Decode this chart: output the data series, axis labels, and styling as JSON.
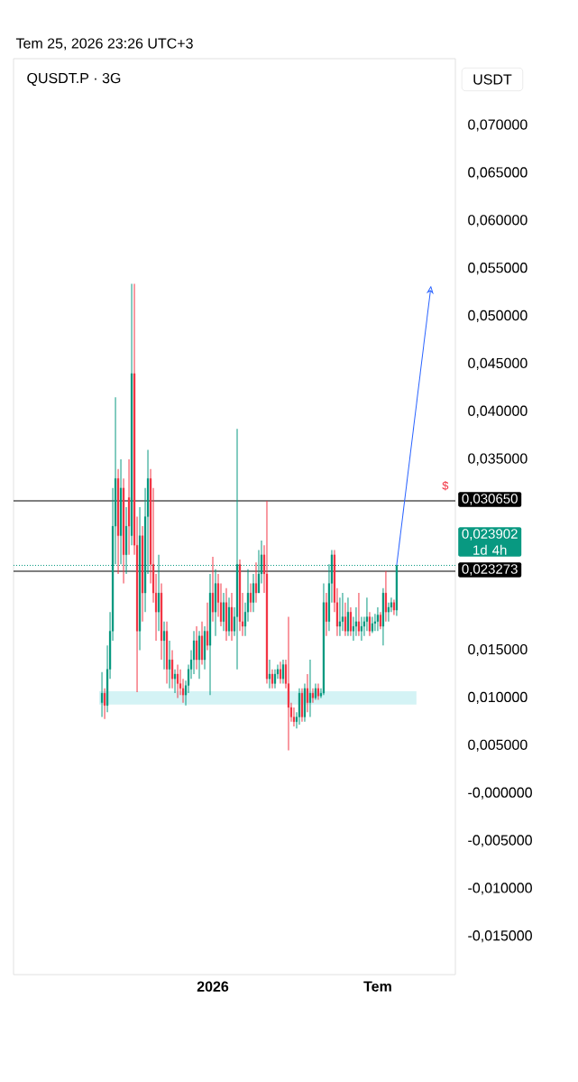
{
  "chart_data": {
    "type": "candlestick",
    "title": "QUSDT.P · 3G",
    "subtitle": "Tem 25, 2026 23:26 UTC+3",
    "ylabel": "USDT",
    "categories": [
      null,
      null,
      null,
      null,
      null,
      null,
      null,
      null,
      null,
      null,
      null,
      null,
      null,
      null,
      null,
      null,
      null,
      null,
      null,
      null,
      null,
      null,
      null,
      null,
      null,
      null,
      null,
      null,
      null,
      null,
      null,
      null,
      null,
      null,
      null,
      null,
      null,
      null,
      null,
      null,
      null,
      "2026",
      null,
      null,
      null,
      null,
      null,
      null,
      null,
      null,
      null,
      null,
      null,
      null,
      null,
      null,
      null,
      null,
      null,
      null,
      null,
      null,
      null,
      null,
      null,
      null,
      null,
      null,
      null,
      null,
      null,
      null,
      null,
      null,
      null,
      null,
      null,
      null,
      null,
      null,
      null,
      null,
      null,
      null,
      null,
      null,
      null,
      null,
      null,
      null,
      null,
      null,
      null,
      null,
      null,
      null,
      null,
      null,
      null,
      null,
      null,
      null,
      "Tem",
      null,
      null,
      null,
      null,
      null,
      null,
      null
    ],
    "ohlc": [
      [
        0.0095,
        0.0127,
        0.008,
        0.0105
      ],
      [
        0.0105,
        0.011,
        0.0078,
        0.0092
      ],
      [
        0.0092,
        0.0155,
        0.0085,
        0.013
      ],
      [
        0.013,
        0.019,
        0.012,
        0.017
      ],
      [
        0.017,
        0.032,
        0.016,
        0.028
      ],
      [
        0.028,
        0.0415,
        0.024,
        0.033
      ],
      [
        0.033,
        0.034,
        0.023,
        0.027
      ],
      [
        0.027,
        0.035,
        0.024,
        0.032
      ],
      [
        0.032,
        0.033,
        0.022,
        0.025
      ],
      [
        0.025,
        0.03,
        0.023,
        0.028
      ],
      [
        0.031,
        0.035,
        0.025,
        0.028
      ],
      [
        0.027,
        0.0534,
        0.026,
        0.044
      ],
      [
        0.044,
        0.0534,
        0.025,
        0.026
      ],
      [
        0.026,
        0.029,
        0.0106,
        0.017
      ],
      [
        0.017,
        0.03,
        0.015,
        0.027
      ],
      [
        0.027,
        0.028,
        0.018,
        0.021
      ],
      [
        0.021,
        0.032,
        0.019,
        0.029
      ],
      [
        0.029,
        0.036,
        0.023,
        0.033
      ],
      [
        0.033,
        0.034,
        0.022,
        0.024
      ],
      [
        0.024,
        0.032,
        0.02,
        0.021
      ],
      [
        0.021,
        0.023,
        0.016,
        0.019
      ],
      [
        0.019,
        0.025,
        0.017,
        0.021
      ],
      [
        0.021,
        0.022,
        0.014,
        0.016
      ],
      [
        0.016,
        0.018,
        0.013,
        0.017
      ],
      [
        0.017,
        0.018,
        0.0115,
        0.013
      ],
      [
        0.013,
        0.016,
        0.011,
        0.014
      ],
      [
        0.014,
        0.015,
        0.011,
        0.012
      ],
      [
        0.012,
        0.013,
        0.0105,
        0.0125
      ],
      [
        0.0125,
        0.0135,
        0.01,
        0.0115
      ],
      [
        0.0115,
        0.013,
        0.0103,
        0.011
      ],
      [
        0.011,
        0.012,
        0.0095,
        0.0103
      ],
      [
        0.0103,
        0.0118,
        0.0092,
        0.0113
      ],
      [
        0.0113,
        0.0135,
        0.0105,
        0.013
      ],
      [
        0.013,
        0.015,
        0.012,
        0.014
      ],
      [
        0.014,
        0.017,
        0.0125,
        0.016
      ],
      [
        0.016,
        0.0175,
        0.013,
        0.014
      ],
      [
        0.014,
        0.017,
        0.012,
        0.0165
      ],
      [
        0.0165,
        0.018,
        0.0135,
        0.014
      ],
      [
        0.014,
        0.0175,
        0.013,
        0.017
      ],
      [
        0.017,
        0.02,
        0.015,
        0.0155
      ],
      [
        0.0155,
        0.023,
        0.0103,
        0.021
      ],
      [
        0.021,
        0.0248,
        0.018,
        0.019
      ],
      [
        0.019,
        0.0235,
        0.0165,
        0.022
      ],
      [
        0.022,
        0.023,
        0.0185,
        0.02
      ],
      [
        0.02,
        0.022,
        0.0175,
        0.018
      ],
      [
        0.018,
        0.021,
        0.017,
        0.02
      ],
      [
        0.02,
        0.0215,
        0.016,
        0.017
      ],
      [
        0.017,
        0.0205,
        0.0165,
        0.0195
      ],
      [
        0.0195,
        0.021,
        0.016,
        0.017
      ],
      [
        0.017,
        0.0195,
        0.0165,
        0.0185
      ],
      [
        0.0185,
        0.0382,
        0.013,
        0.024
      ],
      [
        0.024,
        0.0245,
        0.017,
        0.018
      ],
      [
        0.018,
        0.021,
        0.0165,
        0.0175
      ],
      [
        0.0175,
        0.02,
        0.0165,
        0.019
      ],
      [
        0.019,
        0.0235,
        0.018,
        0.021
      ],
      [
        0.021,
        0.022,
        0.019,
        0.02
      ],
      [
        0.02,
        0.023,
        0.019,
        0.022
      ],
      [
        0.022,
        0.0242,
        0.02,
        0.021
      ],
      [
        0.021,
        0.0255,
        0.021,
        0.023
      ],
      [
        0.023,
        0.0265,
        0.022,
        0.025
      ],
      [
        0.025,
        0.026,
        0.021,
        0.023
      ],
      [
        0.023,
        0.03065,
        0.0115,
        0.012
      ],
      [
        0.012,
        0.014,
        0.011,
        0.0125
      ],
      [
        0.0125,
        0.013,
        0.011,
        0.0115
      ],
      [
        0.0115,
        0.013,
        0.011,
        0.0125
      ],
      [
        0.0125,
        0.0135,
        0.012,
        0.013
      ],
      [
        0.013,
        0.0138,
        0.0115,
        0.012
      ],
      [
        0.012,
        0.014,
        0.0115,
        0.0135
      ],
      [
        0.0135,
        0.014,
        0.011,
        0.0115
      ],
      [
        0.0115,
        0.0185,
        0.0045,
        0.009
      ],
      [
        0.009,
        0.0095,
        0.0075,
        0.008
      ],
      [
        0.008,
        0.009,
        0.007,
        0.0075
      ],
      [
        0.0075,
        0.0085,
        0.0068,
        0.008
      ],
      [
        0.008,
        0.011,
        0.0072,
        0.0105
      ],
      [
        0.0105,
        0.011,
        0.0075,
        0.008
      ],
      [
        0.008,
        0.0115,
        0.0075,
        0.011
      ],
      [
        0.011,
        0.0125,
        0.0085,
        0.0095
      ],
      [
        0.0095,
        0.014,
        0.008,
        0.0105
      ],
      [
        0.0105,
        0.011,
        0.0095,
        0.01
      ],
      [
        0.01,
        0.0115,
        0.0098,
        0.011
      ],
      [
        0.011,
        0.0115,
        0.0098,
        0.0102
      ],
      [
        0.0102,
        0.011,
        0.01,
        0.0105
      ],
      [
        0.0105,
        0.022,
        0.0103,
        0.02
      ],
      [
        0.02,
        0.021,
        0.0165,
        0.018
      ],
      [
        0.018,
        0.024,
        0.017,
        0.022
      ],
      [
        0.022,
        0.0255,
        0.02,
        0.025
      ],
      [
        0.025,
        0.0255,
        0.019,
        0.02
      ],
      [
        0.02,
        0.0215,
        0.0165,
        0.0175
      ],
      [
        0.0175,
        0.0205,
        0.0165,
        0.018
      ],
      [
        0.018,
        0.021,
        0.017,
        0.0185
      ],
      [
        0.0185,
        0.02,
        0.0165,
        0.017
      ],
      [
        0.017,
        0.0205,
        0.0165,
        0.019
      ],
      [
        0.019,
        0.0195,
        0.0165,
        0.017
      ],
      [
        0.017,
        0.0185,
        0.016,
        0.0175
      ],
      [
        0.0175,
        0.0195,
        0.0165,
        0.018
      ],
      [
        0.018,
        0.021,
        0.0165,
        0.017
      ],
      [
        0.017,
        0.0185,
        0.016,
        0.0175
      ],
      [
        0.0175,
        0.0185,
        0.0165,
        0.018
      ],
      [
        0.018,
        0.0205,
        0.017,
        0.0185
      ],
      [
        0.0185,
        0.019,
        0.0165,
        0.017
      ],
      [
        0.017,
        0.0185,
        0.0168,
        0.0178
      ],
      [
        0.0178,
        0.0188,
        0.017,
        0.018
      ],
      [
        0.018,
        0.0195,
        0.017,
        0.0187
      ],
      [
        0.0187,
        0.019,
        0.0172,
        0.0175
      ],
      [
        0.0175,
        0.0215,
        0.0155,
        0.021
      ],
      [
        0.021,
        0.0233,
        0.018,
        0.019
      ],
      [
        0.019,
        0.02,
        0.018,
        0.0195
      ],
      [
        0.0195,
        0.0205,
        0.019,
        0.02
      ],
      [
        0.02,
        0.0203,
        0.0187,
        0.0192
      ],
      [
        0.0192,
        0.023902,
        0.0186,
        0.023902
      ]
    ],
    "ylim": [
      -0.019,
      0.077
    ],
    "yticks": [
      {
        "value": 0.07,
        "label": "0,070000"
      },
      {
        "value": 0.065,
        "label": "0,065000"
      },
      {
        "value": 0.06,
        "label": "0,060000"
      },
      {
        "value": 0.055,
        "label": "0,055000"
      },
      {
        "value": 0.05,
        "label": "0,050000"
      },
      {
        "value": 0.045,
        "label": "0,045000"
      },
      {
        "value": 0.04,
        "label": "0,040000"
      },
      {
        "value": 0.035,
        "label": "0,035000"
      },
      {
        "value": 0.015,
        "label": "0,015000"
      },
      {
        "value": 0.01,
        "label": "0,010000"
      },
      {
        "value": 0.005,
        "label": "0,005000"
      },
      {
        "value": 0,
        "label": "-0,000000"
      },
      {
        "value": -0.005,
        "label": "-0,005000"
      },
      {
        "value": -0.01,
        "label": "-0,010000"
      },
      {
        "value": -0.015,
        "label": "-0,015000"
      }
    ],
    "ref_lines": [
      {
        "axis": "y",
        "value": 0.03065,
        "label": "0,030650",
        "color": "#000000"
      },
      {
        "axis": "y",
        "value": 0.023902,
        "label": "0,023902 1d 4h",
        "color": "#089981",
        "line_style": "dotted"
      },
      {
        "axis": "y",
        "value": 0.023273,
        "label": "0,023273",
        "color": "#000000"
      }
    ],
    "bands": [
      {
        "axis": "y",
        "from": 0.0093,
        "to": 0.0107,
        "color": "#d4f3f5"
      }
    ],
    "annotations": [
      "$"
    ]
  }
}
